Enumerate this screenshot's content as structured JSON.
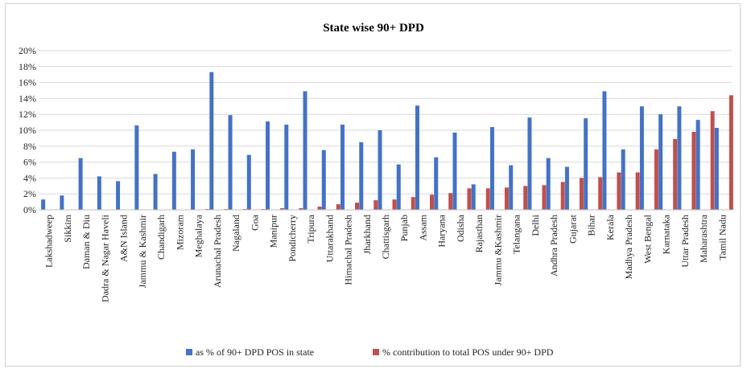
{
  "chart_data": {
    "type": "bar",
    "title": "State wise 90+ DPD",
    "xlabel": "",
    "ylabel": "",
    "ylim": [
      0,
      20
    ],
    "yticks": [
      "0%",
      "2%",
      "4%",
      "6%",
      "8%",
      "10%",
      "12%",
      "14%",
      "16%",
      "18%",
      "20%"
    ],
    "grid": true,
    "legend_position": "bottom",
    "categories": [
      "Lakshadweep",
      "Sikkim",
      "Daman & Diu",
      "Dadra & Nagar Haveli",
      "A&N Island",
      "Jammu & Kashmir",
      "Chandigarh",
      "Mizoram",
      "Meghalaya",
      "Arunachal Pradesh",
      "Nagaland",
      "Goa",
      "Manipur",
      "Pondicherry",
      "Tripura",
      "Uttarakhand",
      "Himachal Pradesh",
      "Jharkhand",
      "Chattisgarh",
      "Punjab",
      "Assam",
      "Haryana",
      "Odisha",
      "Rajasthan",
      "Jammu &Kashmir",
      "Telangana",
      "Delhi",
      "Andhra Pradesh",
      "Gujarat",
      "Bihar",
      "Kerala",
      "Madhya Pradesh",
      "West Bengal",
      "Karnataka",
      "Uttar Pradesh",
      "Maharashtra",
      "Tamil Nadu"
    ],
    "series": [
      {
        "name": "as % of 90+ DPD POS in state",
        "color": "#4472C4",
        "values": [
          1.3,
          1.8,
          6.5,
          4.2,
          3.6,
          10.6,
          4.5,
          7.3,
          7.6,
          17.3,
          11.9,
          6.9,
          11.1,
          10.7,
          14.9,
          7.5,
          10.7,
          8.5,
          10.0,
          5.7,
          13.1,
          6.6,
          9.7,
          3.2,
          10.4,
          5.6,
          11.6,
          6.5,
          5.4,
          11.5,
          14.9,
          7.6,
          13.0,
          12.0,
          13.0,
          11.3,
          10.3
        ]
      },
      {
        "name": "% contribution to total POS under 90+ DPD",
        "color": "#C0504D",
        "values": [
          0.0,
          0.0,
          0.0,
          0.0,
          0.0,
          0.0,
          0.0,
          0.0,
          0.1,
          0.1,
          0.1,
          0.1,
          0.2,
          0.2,
          0.4,
          0.7,
          0.9,
          1.2,
          1.3,
          1.6,
          1.9,
          2.1,
          2.7,
          2.7,
          2.8,
          3.0,
          3.1,
          3.5,
          4.0,
          4.1,
          4.7,
          4.7,
          7.6,
          8.9,
          9.8,
          12.4,
          14.4
        ]
      }
    ]
  }
}
